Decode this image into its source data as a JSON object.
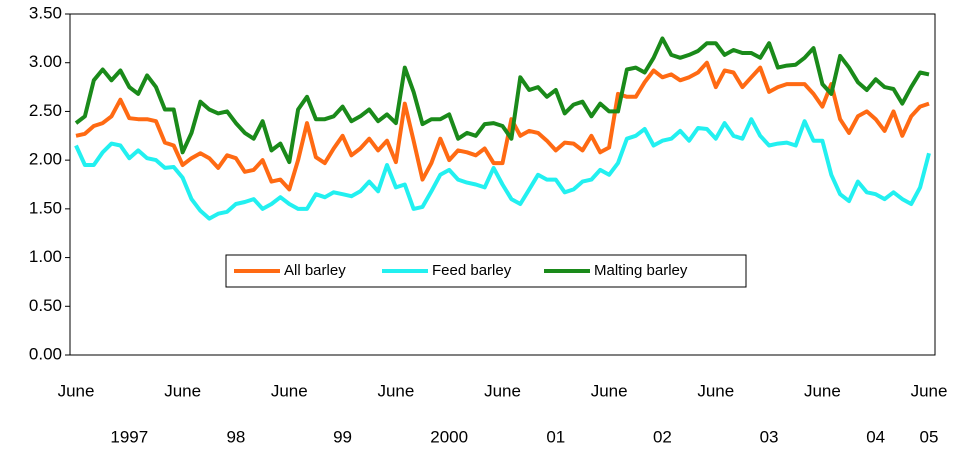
{
  "chart_data": {
    "type": "line",
    "categories": [
      "June",
      null,
      null,
      null,
      null,
      null,
      null,
      null,
      null,
      null,
      null,
      null,
      "June",
      null,
      null,
      null,
      null,
      null,
      null,
      null,
      null,
      null,
      null,
      null,
      "June",
      null,
      null,
      null,
      null,
      null,
      null,
      null,
      null,
      null,
      null,
      null,
      "June",
      null,
      null,
      null,
      null,
      null,
      null,
      null,
      null,
      null,
      null,
      null,
      "June",
      null,
      null,
      null,
      null,
      null,
      null,
      null,
      null,
      null,
      null,
      null,
      "June",
      null,
      null,
      null,
      null,
      null,
      null,
      null,
      null,
      null,
      null,
      null,
      "June",
      null,
      null,
      null,
      null,
      null,
      null,
      null,
      null,
      null,
      null,
      null,
      "June",
      null,
      null,
      null,
      null,
      null,
      null,
      null,
      null,
      null,
      null,
      null,
      "June"
    ],
    "year_labels": [
      "1997",
      "98",
      "99",
      "2000",
      "01",
      "02",
      "03",
      "04",
      "05"
    ],
    "series": [
      {
        "name": "All barley",
        "color": "#ff6a13",
        "values": [
          2.25,
          2.27,
          2.35,
          2.38,
          2.45,
          2.62,
          2.43,
          2.42,
          2.42,
          2.4,
          2.18,
          2.15,
          1.95,
          2.02,
          2.07,
          2.02,
          1.92,
          2.05,
          2.02,
          1.88,
          1.9,
          2.0,
          1.78,
          1.8,
          1.7,
          2.0,
          2.38,
          2.03,
          1.97,
          2.12,
          2.25,
          2.05,
          2.12,
          2.22,
          2.1,
          2.2,
          1.98,
          2.58,
          2.2,
          1.8,
          1.97,
          2.22,
          2.0,
          2.1,
          2.08,
          2.05,
          2.12,
          1.97,
          1.97,
          2.42,
          2.25,
          2.3,
          2.28,
          2.2,
          2.1,
          2.18,
          2.17,
          2.1,
          2.25,
          2.08,
          2.13,
          2.68,
          2.65,
          2.65,
          2.8,
          2.92,
          2.85,
          2.88,
          2.82,
          2.85,
          2.9,
          3.0,
          2.75,
          2.92,
          2.9,
          2.75,
          2.85,
          2.95,
          2.7,
          2.75,
          2.78,
          2.78,
          2.78,
          2.68,
          2.55,
          2.78,
          2.42,
          2.28,
          2.45,
          2.5,
          2.42,
          2.3,
          2.5,
          2.25,
          2.45,
          2.55,
          2.58
        ]
      },
      {
        "name": "Feed barley",
        "color": "#22f0f0",
        "values": [
          2.15,
          1.95,
          1.95,
          2.08,
          2.17,
          2.15,
          2.02,
          2.1,
          2.02,
          2.0,
          1.92,
          1.93,
          1.82,
          1.6,
          1.48,
          1.4,
          1.45,
          1.47,
          1.55,
          1.57,
          1.6,
          1.5,
          1.55,
          1.62,
          1.55,
          1.5,
          1.5,
          1.65,
          1.62,
          1.67,
          1.65,
          1.63,
          1.68,
          1.78,
          1.68,
          1.95,
          1.72,
          1.75,
          1.5,
          1.52,
          1.68,
          1.85,
          1.9,
          1.8,
          1.77,
          1.75,
          1.72,
          1.92,
          1.75,
          1.6,
          1.55,
          1.7,
          1.85,
          1.8,
          1.8,
          1.67,
          1.7,
          1.78,
          1.8,
          1.9,
          1.85,
          1.97,
          2.22,
          2.25,
          2.32,
          2.15,
          2.2,
          2.22,
          2.3,
          2.2,
          2.33,
          2.32,
          2.22,
          2.38,
          2.25,
          2.22,
          2.42,
          2.25,
          2.15,
          2.17,
          2.18,
          2.15,
          2.4,
          2.2,
          2.2,
          1.85,
          1.65,
          1.58,
          1.78,
          1.67,
          1.65,
          1.6,
          1.67,
          1.6,
          1.55,
          1.72,
          2.07
        ]
      },
      {
        "name": "Malting barley",
        "color": "#1a8a1a",
        "values": [
          2.38,
          2.45,
          2.82,
          2.93,
          2.82,
          2.92,
          2.75,
          2.68,
          2.87,
          2.75,
          2.52,
          2.52,
          2.08,
          2.28,
          2.6,
          2.52,
          2.48,
          2.5,
          2.38,
          2.28,
          2.22,
          2.4,
          2.1,
          2.17,
          1.98,
          2.52,
          2.65,
          2.42,
          2.42,
          2.45,
          2.55,
          2.4,
          2.45,
          2.52,
          2.4,
          2.47,
          2.38,
          2.95,
          2.7,
          2.37,
          2.42,
          2.42,
          2.47,
          2.22,
          2.28,
          2.25,
          2.37,
          2.38,
          2.35,
          2.22,
          2.85,
          2.72,
          2.75,
          2.65,
          2.72,
          2.48,
          2.57,
          2.6,
          2.45,
          2.58,
          2.5,
          2.5,
          2.93,
          2.95,
          2.9,
          3.05,
          3.25,
          3.08,
          3.05,
          3.08,
          3.12,
          3.2,
          3.2,
          3.08,
          3.13,
          3.1,
          3.1,
          3.05,
          3.2,
          2.95,
          2.97,
          2.98,
          3.05,
          3.15,
          2.78,
          2.68,
          3.07,
          2.95,
          2.8,
          2.72,
          2.83,
          2.75,
          2.73,
          2.58,
          2.75,
          2.9,
          2.88
        ]
      }
    ],
    "ylim": [
      0,
      3.5
    ],
    "yticks": [
      {
        "value": 0,
        "label": "0.00"
      },
      {
        "value": 0.5,
        "label": "0.50"
      },
      {
        "value": 1,
        "label": "1.00"
      },
      {
        "value": 1.5,
        "label": "1.50"
      },
      {
        "value": 2,
        "label": "2.00"
      },
      {
        "value": 2.5,
        "label": "2.50"
      },
      {
        "value": 3,
        "label": "3.00"
      },
      {
        "value": 3.5,
        "label": "3.50"
      }
    ],
    "grid": false,
    "legend": "center"
  }
}
